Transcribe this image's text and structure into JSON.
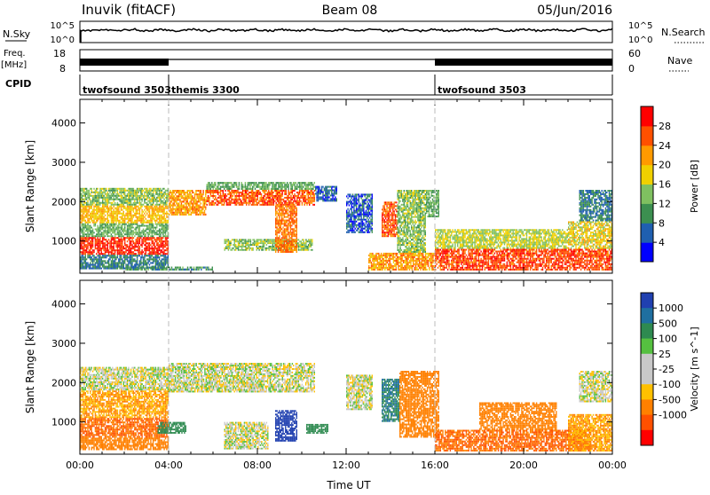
{
  "header": {
    "title": "Inuvik (fitACF)",
    "beam": "Beam 08",
    "date": "05/Jun/2016"
  },
  "panels": {
    "nsky": {
      "label": "N.Sky",
      "left_ticks": [
        "10^5",
        "10^0"
      ],
      "right_ticks": [
        "10^5",
        "10^0"
      ],
      "right_label": "N.Search"
    },
    "freq": {
      "label_line1": "Freq.",
      "label_line2": "[MHz]",
      "left_ticks": [
        "18",
        "8"
      ],
      "right_ticks": [
        "60",
        "0"
      ],
      "right_label": "Nave"
    },
    "cpid": {
      "label": "CPID",
      "segments": [
        {
          "label": "twofsound 3503",
          "start_h": 0,
          "end_h": 4
        },
        {
          "label": "themis 3300",
          "start_h": 4,
          "end_h": 16
        },
        {
          "label": "twofsound 3503",
          "start_h": 16,
          "end_h": 24
        }
      ]
    }
  },
  "colors": {
    "power_scale": [
      "#0000ff",
      "#1f5fb0",
      "#3c8f50",
      "#7fc060",
      "#f0d000",
      "#ff9a00",
      "#ff5000",
      "#ff0000"
    ],
    "velocity_scale": [
      "#2040b0",
      "#1f6fa0",
      "#2e8a50",
      "#55c040",
      "#c8c8c8",
      "#c8c8c8",
      "#ffc000",
      "#ff8000",
      "#ff5000",
      "#ff0000"
    ],
    "ground_scatter": "#c8c8c8"
  },
  "chart_data": [
    {
      "type": "heatmap",
      "name": "power",
      "xlabel": "",
      "ylabel": "Slant Range [km]",
      "xlim": [
        0,
        24
      ],
      "ylim": [
        180,
        4600
      ],
      "yticks": [
        1000,
        2000,
        3000,
        4000
      ],
      "colorbar": {
        "label": "Power [dB]",
        "ticks": [
          "4",
          "8",
          "12",
          "16",
          "20",
          "24",
          "28"
        ],
        "range": [
          0,
          32
        ]
      },
      "echo_regions": [
        {
          "t0": 0.0,
          "t1": 4.0,
          "r0": 650,
          "r1": 1100,
          "level": 28
        },
        {
          "t0": 0.0,
          "t1": 4.0,
          "r0": 1100,
          "r1": 1450,
          "level": 12
        },
        {
          "t0": 0.0,
          "t1": 4.0,
          "r0": 1450,
          "r1": 1900,
          "level": 20
        },
        {
          "t0": 0.0,
          "t1": 4.0,
          "r0": 1900,
          "r1": 2350,
          "level": 14
        },
        {
          "t0": 0.0,
          "t1": 4.0,
          "r0": 280,
          "r1": 650,
          "level": 8
        },
        {
          "t0": 4.0,
          "t1": 5.7,
          "r0": 1650,
          "r1": 2300,
          "level": 22
        },
        {
          "t0": 5.7,
          "t1": 10.6,
          "r0": 1900,
          "r1": 2300,
          "level": 26
        },
        {
          "t0": 5.7,
          "t1": 10.6,
          "r0": 2300,
          "r1": 2500,
          "level": 12
        },
        {
          "t0": 6.5,
          "t1": 10.5,
          "r0": 750,
          "r1": 1050,
          "level": 14
        },
        {
          "t0": 8.8,
          "t1": 9.8,
          "r0": 700,
          "r1": 1900,
          "level": 24
        },
        {
          "t0": 10.6,
          "t1": 11.6,
          "r0": 2000,
          "r1": 2400,
          "level": 6
        },
        {
          "t0": 12.0,
          "t1": 13.2,
          "r0": 1200,
          "r1": 2200,
          "level": 6
        },
        {
          "t0": 13.6,
          "t1": 14.3,
          "r0": 1100,
          "r1": 2000,
          "level": 26
        },
        {
          "t0": 14.3,
          "t1": 15.6,
          "r0": 700,
          "r1": 2300,
          "level": 14
        },
        {
          "t0": 15.6,
          "t1": 16.2,
          "r0": 1600,
          "r1": 2300,
          "level": 12
        },
        {
          "t0": 13.0,
          "t1": 16.0,
          "r0": 250,
          "r1": 700,
          "level": 22
        },
        {
          "t0": 16.0,
          "t1": 24.0,
          "r0": 250,
          "r1": 800,
          "level": 27
        },
        {
          "t0": 16.0,
          "t1": 22.0,
          "r0": 800,
          "r1": 1300,
          "level": 16
        },
        {
          "t0": 22.0,
          "t1": 24.0,
          "r0": 800,
          "r1": 1500,
          "level": 18
        },
        {
          "t0": 22.5,
          "t1": 24.0,
          "r0": 1500,
          "r1": 2300,
          "level": 8
        },
        {
          "t0": 2.0,
          "t1": 6.0,
          "r0": 250,
          "r1": 350,
          "level": 10
        }
      ]
    },
    {
      "type": "heatmap",
      "name": "velocity",
      "xlabel": "Time UT",
      "ylabel": "Slant Range [km]",
      "xlim": [
        0,
        24
      ],
      "ylim": [
        180,
        4600
      ],
      "yticks": [
        1000,
        2000,
        3000,
        4000
      ],
      "xticks": [
        "00:00",
        "04:00",
        "08:00",
        "12:00",
        "16:00",
        "20:00",
        "00:00"
      ],
      "colorbar": {
        "label": "Velocity [m s^-1]",
        "ticks": [
          "1000",
          "500",
          "100",
          "25",
          "-25",
          "-100",
          "-500",
          "-1000"
        ]
      },
      "echo_regions": [
        {
          "t0": 0.0,
          "t1": 4.0,
          "r0": 600,
          "r1": 1100,
          "level": -300
        },
        {
          "t0": 0.0,
          "t1": 4.0,
          "r0": 1100,
          "r1": 1800,
          "level": -100
        },
        {
          "t0": 0.0,
          "t1": 4.0,
          "r0": 1800,
          "r1": 2400,
          "level": 0
        },
        {
          "t0": 0.0,
          "t1": 4.0,
          "r0": 280,
          "r1": 600,
          "level": -200
        },
        {
          "t0": 3.5,
          "t1": 4.8,
          "r0": 700,
          "r1": 1000,
          "level": 200
        },
        {
          "t0": 4.0,
          "t1": 10.6,
          "r0": 1750,
          "r1": 2500,
          "level": 0
        },
        {
          "t0": 6.5,
          "t1": 8.5,
          "r0": 300,
          "r1": 1000,
          "level": 0
        },
        {
          "t0": 8.8,
          "t1": 9.8,
          "r0": 500,
          "r1": 1300,
          "level": 700
        },
        {
          "t0": 10.2,
          "t1": 11.2,
          "r0": 700,
          "r1": 950,
          "level": 200
        },
        {
          "t0": 12.0,
          "t1": 13.2,
          "r0": 1300,
          "r1": 2200,
          "level": 0
        },
        {
          "t0": 13.6,
          "t1": 14.4,
          "r0": 1000,
          "r1": 2100,
          "level": 300
        },
        {
          "t0": 14.4,
          "t1": 16.2,
          "r0": 600,
          "r1": 2300,
          "level": -200
        },
        {
          "t0": 16.0,
          "t1": 23.0,
          "r0": 250,
          "r1": 800,
          "level": -300
        },
        {
          "t0": 18.0,
          "t1": 21.5,
          "r0": 800,
          "r1": 1500,
          "level": -200
        },
        {
          "t0": 22.5,
          "t1": 24.0,
          "r0": 1500,
          "r1": 2300,
          "level": 0
        },
        {
          "t0": 22.0,
          "t1": 24.0,
          "r0": 250,
          "r1": 1200,
          "level": -100
        }
      ]
    }
  ]
}
